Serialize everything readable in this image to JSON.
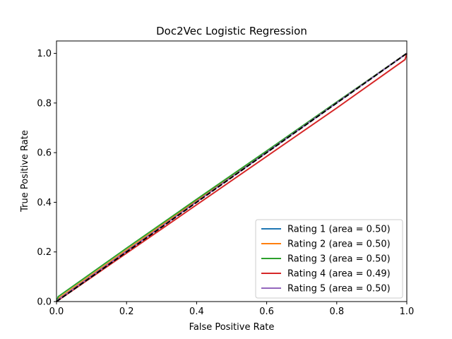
{
  "chart_data": {
    "type": "line",
    "title": "Doc2Vec Logistic Regression",
    "xlabel": "False Positive Rate",
    "ylabel": "True Positive Rate",
    "xlim": [
      0.0,
      1.0
    ],
    "ylim": [
      0.0,
      1.05
    ],
    "xticks": [
      "0.0",
      "0.2",
      "0.4",
      "0.6",
      "0.8",
      "1.0"
    ],
    "yticks": [
      "0.0",
      "0.2",
      "0.4",
      "0.6",
      "0.8",
      "1.0"
    ],
    "grid": false,
    "legend_position": "lower-right",
    "series": [
      {
        "name": "Rating 1 (area = 0.50)",
        "color": "#1f77b4",
        "x": [
          0.0,
          0.005,
          0.2,
          0.4,
          0.6,
          0.8,
          1.0
        ],
        "y": [
          0.0,
          0.01,
          0.205,
          0.405,
          0.603,
          0.802,
          1.0
        ]
      },
      {
        "name": "Rating 2 (area = 0.50)",
        "color": "#ff7f0e",
        "x": [
          0.0,
          0.005,
          0.2,
          0.4,
          0.6,
          0.8,
          1.0
        ],
        "y": [
          0.0,
          0.012,
          0.207,
          0.406,
          0.604,
          0.803,
          1.0
        ]
      },
      {
        "name": "Rating 3 (area = 0.50)",
        "color": "#2ca02c",
        "x": [
          0.0,
          0.005,
          0.2,
          0.4,
          0.6,
          0.8,
          1.0
        ],
        "y": [
          0.0,
          0.02,
          0.215,
          0.412,
          0.607,
          0.804,
          1.0
        ]
      },
      {
        "name": "Rating 4 (area = 0.49)",
        "color": "#d62728",
        "x": [
          0.0,
          0.005,
          0.2,
          0.4,
          0.6,
          0.8,
          0.995,
          1.0
        ],
        "y": [
          0.0,
          0.005,
          0.195,
          0.39,
          0.585,
          0.78,
          0.975,
          1.0
        ]
      },
      {
        "name": "Rating 5 (area = 0.50)",
        "color": "#9467bd",
        "x": [
          0.0,
          0.005,
          0.2,
          0.4,
          0.6,
          0.8,
          1.0
        ],
        "y": [
          0.0,
          0.008,
          0.203,
          0.402,
          0.601,
          0.801,
          1.0
        ]
      }
    ],
    "reference_line": {
      "color": "#000000",
      "style": "dashed",
      "x": [
        0.0,
        1.0
      ],
      "y": [
        0.0,
        1.0
      ]
    }
  }
}
